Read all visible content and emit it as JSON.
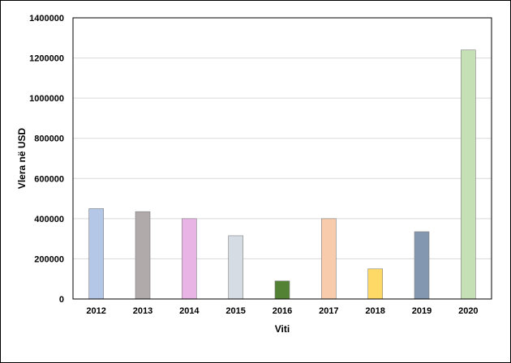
{
  "chart_data": {
    "type": "bar",
    "title": "",
    "xlabel": "Viti",
    "ylabel": "Vlera në USD",
    "categories": [
      "2012",
      "2013",
      "2014",
      "2015",
      "2016",
      "2017",
      "2018",
      "2019",
      "2020"
    ],
    "values": [
      450000,
      435000,
      400000,
      315000,
      90000,
      400000,
      150000,
      335000,
      1240000
    ],
    "colors": [
      "#b4c7e7",
      "#b0aaaa",
      "#e8b4e6",
      "#d6dce4",
      "#548235",
      "#f8cbad",
      "#ffd966",
      "#8497b0",
      "#c5e0b4"
    ],
    "ylim": [
      0,
      1400000
    ],
    "yticks": [
      "0",
      "200000",
      "400000",
      "600000",
      "800000",
      "1000000",
      "1200000",
      "1400000"
    ],
    "grid": true,
    "legend": "none"
  }
}
